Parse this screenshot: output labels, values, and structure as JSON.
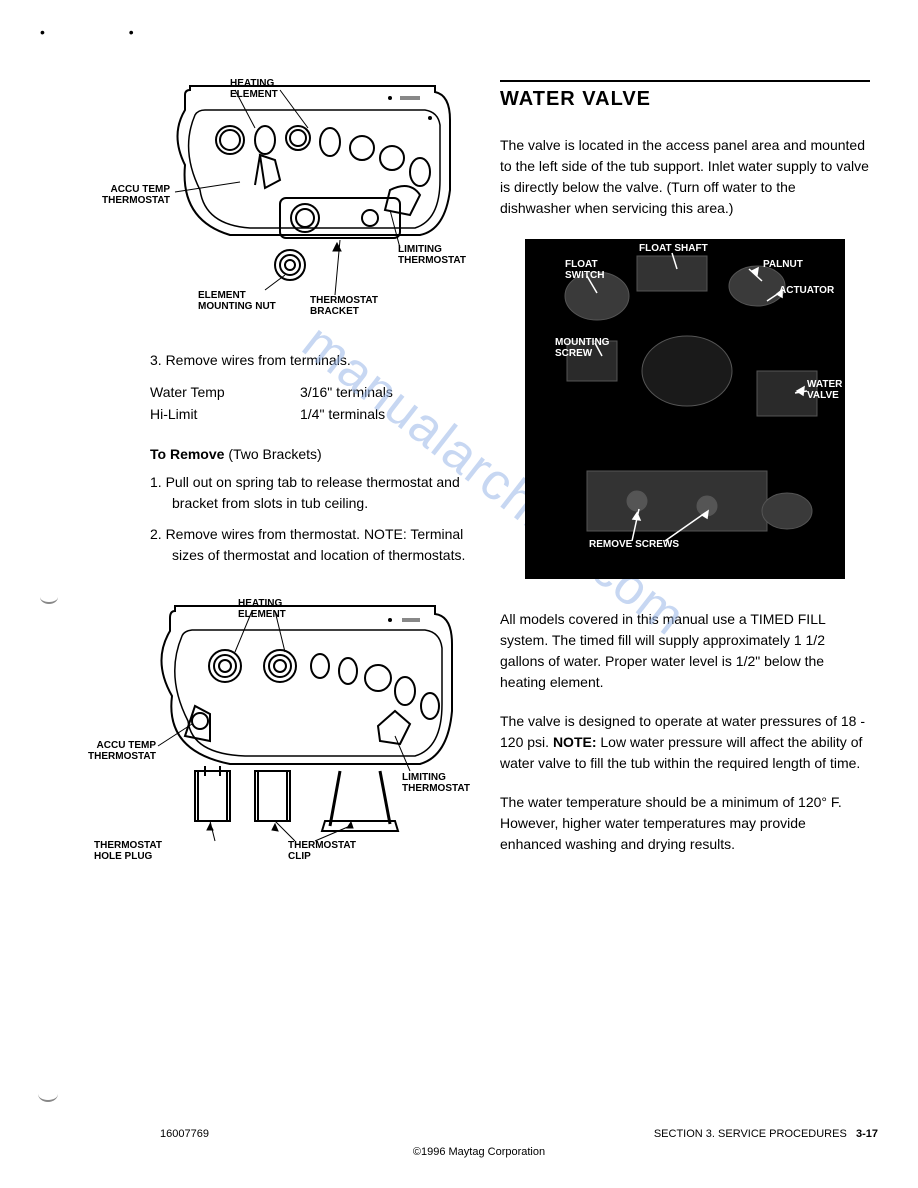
{
  "page": {
    "doc_number": "16007769",
    "copyright": "©1996 Maytag Corporation",
    "section_ref": "SECTION 3.  SERVICE PROCEDURES",
    "page_number": "3-17"
  },
  "watermark": "manualarchive.com",
  "diagrams": {
    "top": {
      "labels": {
        "heating_element": "HEATING\nELEMENT",
        "accu_temp": "ACCU TEMP\nTHERMOSTAT",
        "limiting_thermostat": "LIMITING\nTHERMOSTAT",
        "element_mounting_nut": "ELEMENT\nMOUNTING NUT",
        "thermostat_bracket": "THERMOSTAT\nBRACKET"
      },
      "stroke_color": "#000000",
      "background": "#ffffff"
    },
    "bottom": {
      "labels": {
        "heating_element": "HEATING\nELEMENT",
        "accu_temp": "ACCU TEMP\nTHERMOSTAT",
        "limiting_thermostat": "LIMITING\nTHERMOSTAT",
        "thermostat_hole_plug": "THERMOSTAT\nHOLE PLUG",
        "thermostat_clip": "THERMOSTAT\nCLIP"
      },
      "stroke_color": "#000000",
      "background": "#ffffff"
    },
    "photo": {
      "background": "#000000",
      "labels": {
        "float_switch": "FLOAT\nSWITCH",
        "float_shaft": "FLOAT SHAFT",
        "palnut": "PALNUT",
        "actuator": "ACTUATOR",
        "mounting_screw": "MOUNTING\nSCREW",
        "water_valve": "WATER\nVALVE",
        "remove_screws": "REMOVE SCREWS"
      }
    }
  },
  "left_column": {
    "step3": "3.  Remove wires from terminals.",
    "terminal_table": {
      "rows": [
        {
          "label": "Water Temp",
          "value": "3/16\" terminals"
        },
        {
          "label": "Hi-Limit",
          "value": "1/4\" terminals"
        }
      ]
    },
    "to_remove_heading_bold": "To Remove",
    "to_remove_heading_rest": " (Two Brackets)",
    "bracket_step1": "1.  Pull out on spring tab to release thermostat and bracket from slots in tub ceiling.",
    "bracket_step2": "2.  Remove wires from thermostat. NOTE: Terminal sizes of thermostat and location of thermostats."
  },
  "right_column": {
    "title": "WATER VALVE",
    "para1": "The valve is located in the access panel area and mounted to the left side of the tub support.  Inlet water supply to valve is directly below the valve.  (Turn off water to the dishwasher when servicing this area.)",
    "para2": "All models covered in this manual use a TIMED FILL system.  The timed fill will supply approximately 1 1/2 gallons of water.  Proper water level is 1/2\" below the heating element.",
    "para3_pre": "The valve is designed to operate at water pressures of 18 - 120 psi.  ",
    "para3_bold": "NOTE:",
    "para3_post": " Low water pressure will affect the ability of water valve to fill the tub within the required length of time.",
    "para4": "The water temperature should be a minimum of 120° F.  However, higher water temperatures may provide enhanced washing and drying results."
  }
}
